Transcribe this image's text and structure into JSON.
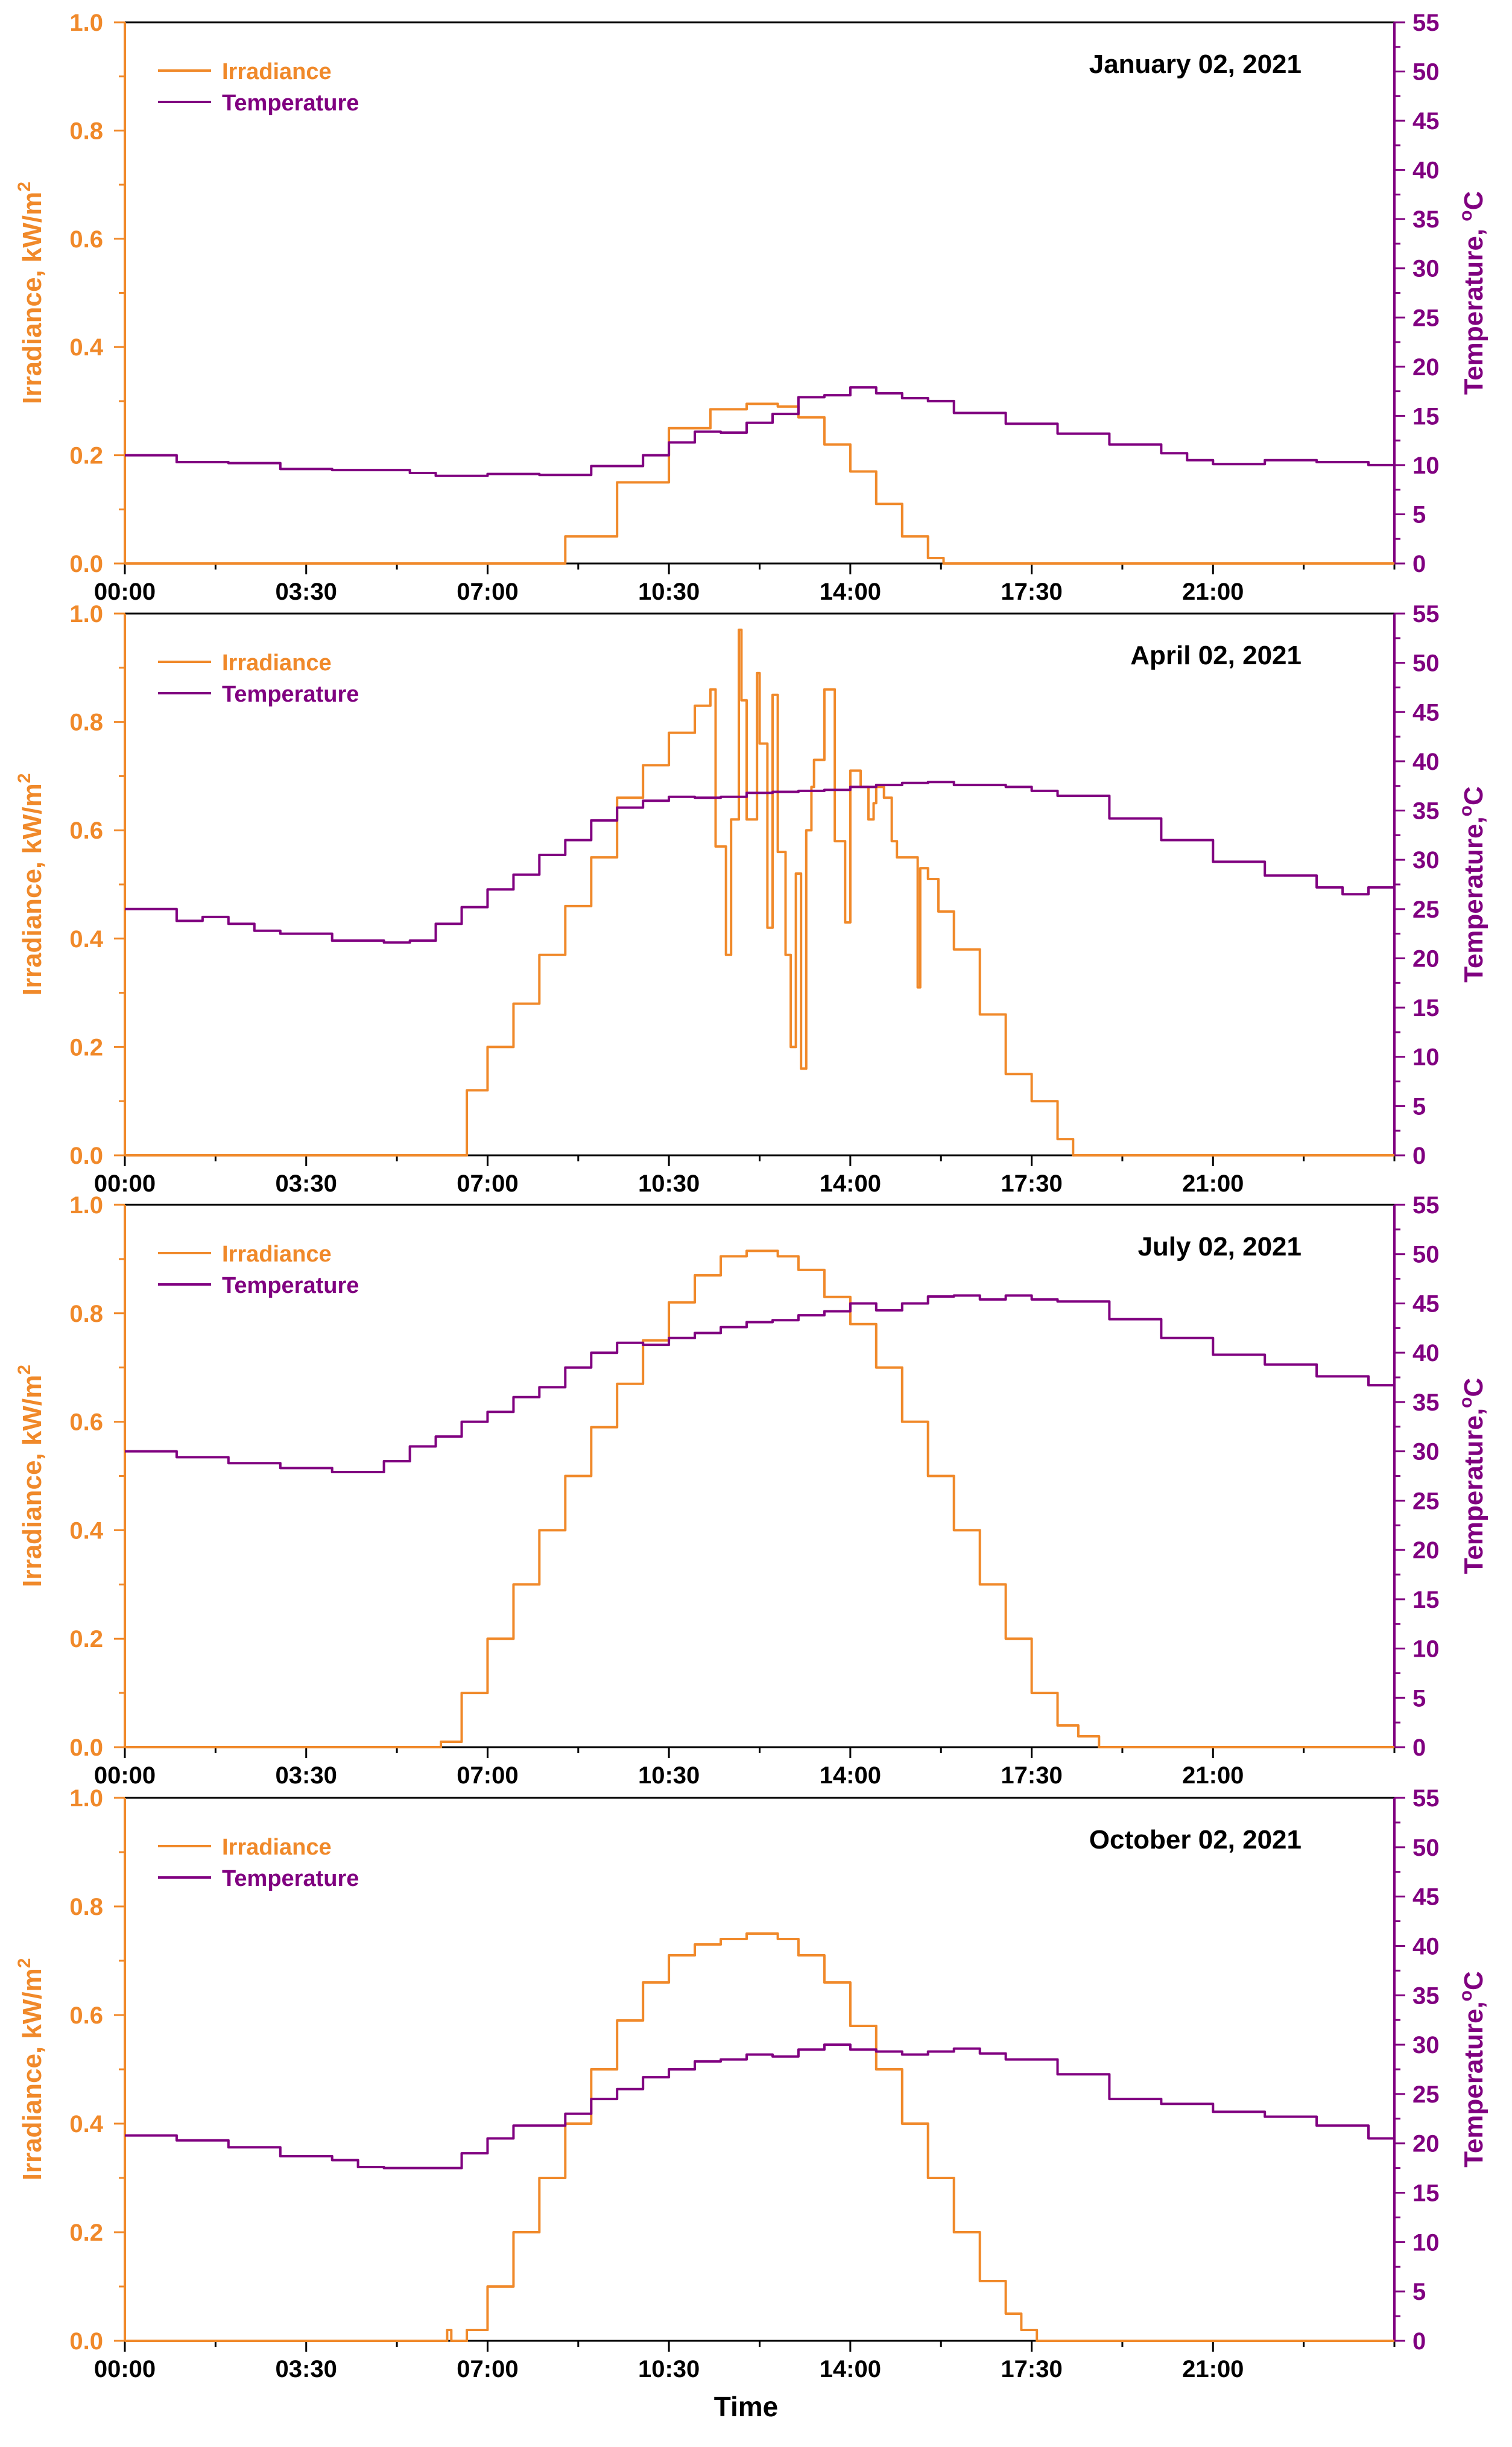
{
  "figure": {
    "xlabel": "Time",
    "colors": {
      "irradiance": "#F0892A",
      "temperature": "#800080",
      "axis": "#000000"
    }
  },
  "chart_data": [
    {
      "type": "line",
      "title": "January 02, 2021",
      "xlabel": "",
      "ylabel": "Irradiance, kW/m",
      "ylabel_sup": "2",
      "y2label": "Temperature, ",
      "y2label_sup": "o",
      "y2label_end": "C",
      "xlim": [
        0,
        24.5
      ],
      "ylim": [
        0,
        1.0
      ],
      "y2lim": [
        0,
        55
      ],
      "xticks": [
        0,
        3.5,
        7,
        10.5,
        14,
        17.5,
        21
      ],
      "xticklabels": [
        "00:00",
        "03:30",
        "07:00",
        "10:30",
        "14:00",
        "17:30",
        "21:00"
      ],
      "yticks": [
        0.0,
        0.2,
        0.4,
        0.6,
        0.8,
        1.0
      ],
      "yticklabels": [
        "0.0",
        "0.2",
        "0.4",
        "0.6",
        "0.8",
        "1.0"
      ],
      "y2ticks": [
        0,
        5,
        10,
        15,
        20,
        25,
        30,
        35,
        40,
        45,
        50,
        55
      ],
      "y2ticklabels": [
        "0",
        "5",
        "10",
        "15",
        "20",
        "25",
        "30",
        "35",
        "40",
        "45",
        "50",
        "55"
      ],
      "legend": [
        "Irradiance",
        "Temperature"
      ],
      "series": [
        {
          "name": "Irradiance",
          "axis": "left",
          "x": [
            0,
            7.9,
            8.5,
            9.5,
            10.5,
            11.3,
            12.0,
            12.6,
            13.0,
            13.5,
            14.0,
            14.5,
            15.0,
            15.5,
            15.8,
            24.5
          ],
          "y": [
            0,
            0,
            0.05,
            0.15,
            0.25,
            0.285,
            0.295,
            0.29,
            0.27,
            0.22,
            0.17,
            0.11,
            0.05,
            0.01,
            0,
            0
          ]
        },
        {
          "name": "Temperature",
          "axis": "right",
          "x": [
            0,
            1.0,
            2.0,
            3.0,
            4.0,
            5.0,
            5.5,
            6.0,
            7.0,
            8.0,
            9.0,
            10.0,
            10.5,
            11.0,
            11.5,
            12.0,
            12.5,
            13.0,
            13.5,
            14.0,
            14.5,
            15.0,
            15.5,
            16.0,
            17.0,
            18.0,
            19.0,
            20.0,
            20.5,
            21.0,
            22.0,
            23.0,
            24.0,
            24.5
          ],
          "y": [
            11.0,
            10.3,
            10.2,
            9.6,
            9.5,
            9.5,
            9.2,
            8.9,
            9.1,
            9.0,
            9.9,
            11.0,
            12.3,
            13.4,
            13.3,
            14.3,
            15.2,
            16.9,
            17.1,
            17.9,
            17.3,
            16.8,
            16.5,
            15.3,
            14.2,
            13.2,
            12.1,
            11.2,
            10.5,
            10.1,
            10.5,
            10.3,
            10.0,
            9.9
          ]
        }
      ]
    },
    {
      "type": "line",
      "title": "April 02, 2021",
      "xlabel": "",
      "ylabel": "Irradiance, kW/m",
      "ylabel_sup": "2",
      "y2label": "Temperature,",
      "y2label_sup": "o",
      "y2label_end": "C",
      "xlim": [
        0,
        24.5
      ],
      "ylim": [
        0,
        1.0
      ],
      "y2lim": [
        0,
        55
      ],
      "xticks": [
        0,
        3.5,
        7,
        10.5,
        14,
        17.5,
        21
      ],
      "xticklabels": [
        "00:00",
        "03:30",
        "07:00",
        "10:30",
        "14:00",
        "17:30",
        "21:00"
      ],
      "yticks": [
        0.0,
        0.2,
        0.4,
        0.6,
        0.8,
        1.0
      ],
      "yticklabels": [
        "0.0",
        "0.2",
        "0.4",
        "0.6",
        "0.8",
        "1.0"
      ],
      "y2ticks": [
        0,
        5,
        10,
        15,
        20,
        25,
        30,
        35,
        40,
        45,
        50,
        55
      ],
      "y2ticklabels": [
        "0",
        "5",
        "10",
        "15",
        "20",
        "25",
        "30",
        "35",
        "40",
        "45",
        "50",
        "55"
      ],
      "legend": [
        "Irradiance",
        "Temperature"
      ],
      "series": [
        {
          "name": "Irradiance",
          "axis": "left",
          "x": [
            0,
            6.2,
            6.6,
            7.0,
            7.5,
            8.0,
            8.5,
            9.0,
            9.5,
            10.0,
            10.5,
            11.0,
            11.3,
            11.4,
            11.6,
            11.7,
            11.85,
            11.9,
            12.0,
            12.2,
            12.25,
            12.4,
            12.5,
            12.6,
            12.75,
            12.85,
            12.95,
            13.05,
            13.15,
            13.25,
            13.3,
            13.5,
            13.7,
            13.9,
            14.0,
            14.2,
            14.35,
            14.45,
            14.5,
            14.65,
            14.8,
            14.9,
            15.3,
            15.35,
            15.5,
            15.7,
            16.0,
            16.5,
            17.0,
            17.5,
            18.0,
            18.3,
            24.5
          ],
          "y": [
            0,
            0,
            0.12,
            0.2,
            0.28,
            0.37,
            0.46,
            0.55,
            0.66,
            0.72,
            0.78,
            0.83,
            0.86,
            0.57,
            0.37,
            0.62,
            0.97,
            0.84,
            0.62,
            0.89,
            0.76,
            0.42,
            0.85,
            0.56,
            0.37,
            0.2,
            0.52,
            0.16,
            0.6,
            0.68,
            0.73,
            0.86,
            0.58,
            0.43,
            0.71,
            0.68,
            0.62,
            0.65,
            0.68,
            0.66,
            0.58,
            0.55,
            0.31,
            0.53,
            0.51,
            0.45,
            0.38,
            0.26,
            0.15,
            0.1,
            0.03,
            0,
            0
          ]
        },
        {
          "name": "Temperature",
          "axis": "right",
          "x": [
            0,
            1.0,
            1.5,
            2.0,
            2.5,
            3.0,
            4.0,
            5.0,
            5.5,
            6.0,
            6.5,
            7.0,
            7.5,
            8.0,
            8.5,
            9.0,
            9.5,
            10.0,
            10.5,
            11.0,
            11.5,
            12.0,
            12.5,
            13.0,
            13.5,
            14.0,
            14.5,
            15.0,
            15.5,
            16.0,
            17.0,
            17.5,
            18.0,
            19.0,
            20.0,
            21.0,
            22.0,
            23.0,
            23.5,
            24.0,
            24.5
          ],
          "y": [
            25.0,
            23.8,
            24.2,
            23.5,
            22.8,
            22.5,
            21.8,
            21.6,
            21.8,
            23.5,
            25.2,
            27.0,
            28.5,
            30.5,
            32.0,
            34.0,
            35.3,
            36.0,
            36.4,
            36.3,
            36.4,
            36.8,
            36.9,
            37.0,
            37.1,
            37.4,
            37.6,
            37.8,
            37.9,
            37.6,
            37.4,
            37.0,
            36.5,
            34.2,
            32.0,
            29.8,
            28.4,
            27.2,
            26.5,
            27.2,
            27.5
          ]
        }
      ]
    },
    {
      "type": "line",
      "title": "July 02, 2021",
      "xlabel": "",
      "ylabel": "Irradiance, kW/m",
      "ylabel_sup": "2",
      "y2label": "Temperature,",
      "y2label_sup": "o",
      "y2label_end": "C",
      "xlim": [
        0,
        24.5
      ],
      "ylim": [
        0,
        1.0
      ],
      "y2lim": [
        0,
        55
      ],
      "xticks": [
        0,
        3.5,
        7,
        10.5,
        14,
        17.5,
        21
      ],
      "xticklabels": [
        "00:00",
        "03:30",
        "07:00",
        "10:30",
        "14:00",
        "17:30",
        "21:00"
      ],
      "yticks": [
        0.0,
        0.2,
        0.4,
        0.6,
        0.8,
        1.0
      ],
      "yticklabels": [
        "0.0",
        "0.2",
        "0.4",
        "0.6",
        "0.8",
        "1.0"
      ],
      "y2ticks": [
        0,
        5,
        10,
        15,
        20,
        25,
        30,
        35,
        40,
        45,
        50,
        55
      ],
      "y2ticklabels": [
        "0",
        "5",
        "10",
        "15",
        "20",
        "25",
        "30",
        "35",
        "40",
        "45",
        "50",
        "55"
      ],
      "legend": [
        "Irradiance",
        "Temperature"
      ],
      "series": [
        {
          "name": "Irradiance",
          "axis": "left",
          "x": [
            0,
            5.2,
            6.1,
            6.5,
            7.0,
            7.5,
            8.0,
            8.5,
            9.0,
            9.5,
            10.0,
            10.5,
            11.0,
            11.5,
            12.0,
            12.3,
            12.6,
            13.0,
            13.5,
            14.0,
            14.5,
            15.0,
            15.5,
            16.0,
            16.5,
            17.0,
            17.5,
            18.0,
            18.4,
            18.8,
            24.5
          ],
          "y": [
            0,
            0,
            0.01,
            0.1,
            0.2,
            0.3,
            0.4,
            0.5,
            0.59,
            0.67,
            0.75,
            0.82,
            0.87,
            0.905,
            0.915,
            0.915,
            0.905,
            0.88,
            0.83,
            0.78,
            0.7,
            0.6,
            0.5,
            0.4,
            0.3,
            0.2,
            0.1,
            0.04,
            0.02,
            0,
            0
          ]
        },
        {
          "name": "Temperature",
          "axis": "right",
          "x": [
            0,
            1.0,
            2.0,
            3.0,
            4.0,
            4.5,
            5.0,
            5.5,
            6.0,
            6.5,
            7.0,
            7.5,
            8.0,
            8.5,
            9.0,
            9.5,
            10.0,
            10.5,
            11.0,
            11.5,
            12.0,
            12.5,
            13.0,
            13.5,
            14.0,
            14.5,
            15.0,
            15.5,
            16.0,
            16.5,
            17.0,
            17.5,
            18.0,
            19.0,
            20.0,
            21.0,
            22.0,
            23.0,
            24.0,
            24.5
          ],
          "y": [
            30.0,
            29.4,
            28.8,
            28.3,
            27.9,
            27.9,
            29.0,
            30.5,
            31.5,
            33.0,
            34.0,
            35.5,
            36.5,
            38.5,
            40.0,
            41.0,
            40.8,
            41.5,
            42.0,
            42.6,
            43.1,
            43.3,
            43.8,
            44.2,
            45.0,
            44.3,
            45.0,
            45.7,
            45.8,
            45.4,
            45.8,
            45.4,
            45.2,
            43.4,
            41.5,
            39.8,
            38.8,
            37.6,
            36.7,
            36.3
          ]
        }
      ]
    },
    {
      "type": "line",
      "title": "October 02, 2021",
      "xlabel": "Time",
      "ylabel": "Irradiance, kW/m",
      "ylabel_sup": "2",
      "y2label": "Temperature,",
      "y2label_sup": "o",
      "y2label_end": "C",
      "xlim": [
        0,
        24.5
      ],
      "ylim": [
        0,
        1.0
      ],
      "y2lim": [
        0,
        55
      ],
      "xticks": [
        0,
        3.5,
        7,
        10.5,
        14,
        17.5,
        21
      ],
      "xticklabels": [
        "00:00",
        "03:30",
        "07:00",
        "10:30",
        "14:00",
        "17:30",
        "21:00"
      ],
      "yticks": [
        0.0,
        0.2,
        0.4,
        0.6,
        0.8,
        1.0
      ],
      "yticklabels": [
        "0.0",
        "0.2",
        "0.4",
        "0.6",
        "0.8",
        "1.0"
      ],
      "y2ticks": [
        0,
        5,
        10,
        15,
        20,
        25,
        30,
        35,
        40,
        45,
        50,
        55
      ],
      "y2ticklabels": [
        "0",
        "5",
        "10",
        "15",
        "20",
        "25",
        "30",
        "35",
        "40",
        "45",
        "50",
        "55"
      ],
      "legend": [
        "Irradiance",
        "Temperature"
      ],
      "series": [
        {
          "name": "Irradiance",
          "axis": "left",
          "x": [
            0,
            6.2,
            6.22,
            6.3,
            6.6,
            7.0,
            7.5,
            8.0,
            8.5,
            9.0,
            9.5,
            10.0,
            10.5,
            11.0,
            11.5,
            12.0,
            12.3,
            12.6,
            13.0,
            13.5,
            14.0,
            14.5,
            15.0,
            15.5,
            16.0,
            16.5,
            17.0,
            17.3,
            17.6,
            24.5
          ],
          "y": [
            0,
            0,
            0.02,
            0.0,
            0.02,
            0.1,
            0.2,
            0.3,
            0.4,
            0.5,
            0.59,
            0.66,
            0.71,
            0.73,
            0.74,
            0.75,
            0.75,
            0.74,
            0.71,
            0.66,
            0.58,
            0.5,
            0.4,
            0.3,
            0.2,
            0.11,
            0.05,
            0.02,
            0,
            0
          ]
        },
        {
          "name": "Temperature",
          "axis": "right",
          "x": [
            0,
            1.0,
            2.0,
            3.0,
            4.0,
            4.5,
            5.0,
            6.0,
            6.5,
            7.0,
            7.5,
            8.0,
            8.5,
            9.0,
            9.5,
            10.0,
            10.5,
            11.0,
            11.5,
            12.0,
            12.5,
            13.0,
            13.5,
            14.0,
            14.5,
            15.0,
            15.5,
            16.0,
            16.5,
            17.0,
            18.0,
            19.0,
            20.0,
            21.0,
            22.0,
            23.0,
            24.0,
            24.5
          ],
          "y": [
            20.8,
            20.3,
            19.6,
            18.7,
            18.3,
            17.6,
            17.5,
            17.5,
            19.0,
            20.5,
            21.8,
            21.8,
            23.0,
            24.5,
            25.5,
            26.7,
            27.5,
            28.3,
            28.5,
            29.0,
            28.8,
            29.5,
            30.0,
            29.5,
            29.3,
            29.0,
            29.3,
            29.6,
            29.1,
            28.5,
            27.0,
            24.5,
            24.0,
            23.2,
            22.7,
            21.8,
            20.5,
            20.0
          ]
        }
      ]
    }
  ]
}
